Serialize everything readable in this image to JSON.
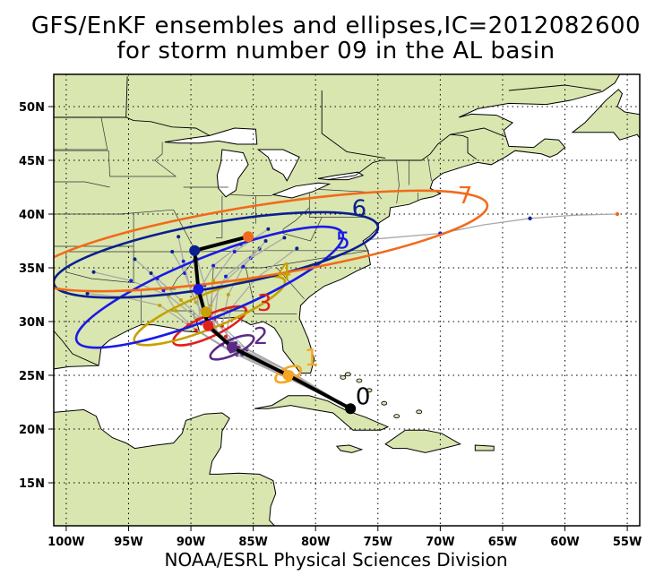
{
  "title": {
    "line1": "GFS/EnKF ensembles and ellipses,IC=2012082600",
    "line2": "for storm number 09 in the AL basin"
  },
  "credit": "NOAA/ESRL Physical Sciences Division",
  "map": {
    "lon_range": [
      -101,
      -54
    ],
    "lat_range": [
      11,
      53
    ],
    "land_color": "#d9e6b0",
    "ocean_color": "#ffffff",
    "grid": "dotted",
    "lon_ticks": [
      "100W",
      "95W",
      "90W",
      "85W",
      "80W",
      "75W",
      "70W",
      "65W",
      "60W",
      "55W"
    ],
    "lat_ticks": [
      "15N",
      "20N",
      "25N",
      "30N",
      "35N",
      "40N",
      "45N",
      "50N"
    ]
  },
  "chart_data": {
    "type": "map-track",
    "mean_track": [
      [
        -77.2,
        21.9
      ],
      [
        -82.2,
        25.0
      ],
      [
        -86.7,
        27.6
      ],
      [
        -88.6,
        29.6
      ],
      [
        -89.4,
        33.0
      ],
      [
        -89.7,
        36.6
      ],
      [
        -85.4,
        37.9
      ]
    ],
    "forecast_days": [
      {
        "label": "0",
        "lon": -77.2,
        "lat": 21.9,
        "color": "#000000"
      },
      {
        "label": "1",
        "lon": -82.2,
        "lat": 25.0,
        "color": "#f5a623"
      },
      {
        "label": "2",
        "lon": -86.7,
        "lat": 27.6,
        "color": "#5b2a86"
      },
      {
        "label": "3",
        "lon": -88.6,
        "lat": 29.6,
        "color": "#e0201b"
      },
      {
        "label": "4",
        "lon": -88.8,
        "lat": 30.9,
        "color": "#c8a000"
      },
      {
        "label": "5",
        "lon": -89.4,
        "lat": 33.0,
        "color": "#1a1ae6"
      },
      {
        "label": "6",
        "lon": -89.7,
        "lat": 36.6,
        "color": "#0a1f8f"
      },
      {
        "label": "7",
        "lon": -85.4,
        "lat": 37.9,
        "color": "#f26a1b"
      }
    ],
    "ellipses": [
      {
        "day": "1",
        "lon": -82.2,
        "lat": 25.1,
        "rx_deg": 1.1,
        "ry_deg": 0.6,
        "rot": -25,
        "color": "#f5a623"
      },
      {
        "day": "2",
        "lon": -86.7,
        "lat": 27.6,
        "rx_deg": 1.9,
        "ry_deg": 0.7,
        "rot": -25,
        "color": "#5b2a86"
      },
      {
        "day": "3",
        "lon": -88.5,
        "lat": 29.6,
        "rx_deg": 3.2,
        "ry_deg": 1.0,
        "rot": -25,
        "color": "#e0201b"
      },
      {
        "day": "4",
        "lon": -88.5,
        "lat": 31.0,
        "rx_deg": 6.5,
        "ry_deg": 1.6,
        "rot": -22,
        "color": "#c8a000"
      },
      {
        "day": "5",
        "lon": -88.5,
        "lat": 33.2,
        "rx_deg": 11.5,
        "ry_deg": 2.8,
        "rot": -22,
        "color": "#1a1ae6"
      },
      {
        "day": "6",
        "lon": -88.0,
        "lat": 36.2,
        "rx_deg": 13.2,
        "ry_deg": 3.0,
        "rot": -10,
        "color": "#0a1f8f"
      },
      {
        "day": "7",
        "lon": -84.5,
        "lat": 37.5,
        "rx_deg": 18.5,
        "ry_deg": 3.3,
        "rot": -9,
        "color": "#f26a1b"
      }
    ],
    "day_labels": [
      {
        "text": "0",
        "lon": -76.2,
        "lat": 22.3,
        "color": "#000000"
      },
      {
        "text": "1",
        "lon": -80.3,
        "lat": 25.9,
        "color": "#f5a623"
      },
      {
        "text": "2",
        "lon": -84.4,
        "lat": 27.9,
        "color": "#5b2a86"
      },
      {
        "text": "3",
        "lon": -84.1,
        "lat": 31.0,
        "color": "#e0201b"
      },
      {
        "text": "4",
        "lon": -82.5,
        "lat": 33.9,
        "color": "#c8a000"
      },
      {
        "text": "5",
        "lon": -77.8,
        "lat": 36.8,
        "color": "#1a1ae6"
      },
      {
        "text": "6",
        "lon": -76.5,
        "lat": 39.8,
        "color": "#0a1f8f"
      },
      {
        "text": "7",
        "lon": -68.0,
        "lat": 41.0,
        "color": "#f26a1b"
      }
    ],
    "ensemble_members": [
      [
        [
          -77.2,
          21.9
        ],
        [
          -81.5,
          24.8
        ],
        [
          -85.8,
          27.2
        ],
        [
          -88.2,
          29.3
        ],
        [
          -89.6,
          31.8
        ],
        [
          -90.5,
          34.5
        ],
        [
          -91.5,
          36.5
        ]
      ],
      [
        [
          -77.2,
          21.9
        ],
        [
          -81.8,
          24.9
        ],
        [
          -86.1,
          27.5
        ],
        [
          -88.8,
          29.8
        ],
        [
          -90.8,
          32.0
        ],
        [
          -92.7,
          34.0
        ],
        [
          -94.5,
          35.8
        ]
      ],
      [
        [
          -77.2,
          21.9
        ],
        [
          -82.4,
          25.2
        ],
        [
          -86.9,
          27.9
        ],
        [
          -89.4,
          30.2
        ],
        [
          -91.8,
          32.4
        ],
        [
          -94.8,
          33.8
        ],
        [
          -97.8,
          34.6
        ]
      ],
      [
        [
          -77.2,
          21.9
        ],
        [
          -82.0,
          24.6
        ],
        [
          -86.3,
          26.9
        ],
        [
          -88.0,
          29.0
        ],
        [
          -88.4,
          31.5
        ],
        [
          -87.2,
          34.2
        ],
        [
          -84.5,
          36.8
        ]
      ],
      [
        [
          -77.2,
          21.9
        ],
        [
          -81.2,
          24.5
        ],
        [
          -85.2,
          26.6
        ],
        [
          -87.2,
          28.6
        ],
        [
          -86.8,
          31.2
        ],
        [
          -84.8,
          34.0
        ],
        [
          -81.5,
          36.8
        ]
      ],
      [
        [
          -77.2,
          21.9
        ],
        [
          -82.5,
          25.3
        ],
        [
          -87.0,
          27.9
        ],
        [
          -89.2,
          29.8
        ],
        [
          -89.5,
          32.5
        ],
        [
          -88.2,
          35.2
        ],
        [
          -86.0,
          37.2
        ]
      ],
      [
        [
          -77.2,
          21.9
        ],
        [
          -82.8,
          25.1
        ],
        [
          -87.5,
          27.8
        ],
        [
          -90.2,
          29.7
        ],
        [
          -92.5,
          31.5
        ],
        [
          -95.5,
          32.3
        ],
        [
          -98.3,
          32.6
        ]
      ],
      [
        [
          -77.2,
          21.9
        ],
        [
          -81.9,
          25.2
        ],
        [
          -86.2,
          27.6
        ],
        [
          -88.1,
          30.2
        ],
        [
          -87.8,
          33.2
        ],
        [
          -85.2,
          35.9
        ],
        [
          -82.5,
          37.8
        ]
      ],
      [
        [
          -77.2,
          21.9
        ],
        [
          -81.6,
          24.7
        ],
        [
          -85.9,
          26.9
        ],
        [
          -87.8,
          28.8
        ],
        [
          -88.5,
          31.0
        ],
        [
          -88.9,
          33.4
        ],
        [
          -89.5,
          35.8
        ]
      ],
      [
        [
          -77.2,
          21.9
        ],
        [
          -82.3,
          24.8
        ],
        [
          -86.8,
          27.2
        ],
        [
          -89.6,
          29.2
        ],
        [
          -91.2,
          31.0
        ],
        [
          -92.2,
          32.9
        ],
        [
          -93.2,
          34.5
        ]
      ],
      [
        [
          -77.2,
          21.9
        ],
        [
          -81.4,
          24.9
        ],
        [
          -85.5,
          27.4
        ],
        [
          -87.5,
          29.6
        ],
        [
          -87.0,
          32.5
        ],
        [
          -85.8,
          35.1
        ],
        [
          -84.0,
          37.5
        ]
      ],
      [
        [
          -77.2,
          21.9
        ],
        [
          -82.1,
          25.0
        ],
        [
          -86.6,
          27.7
        ],
        [
          -88.8,
          30.0
        ],
        [
          -90.0,
          32.8
        ],
        [
          -90.6,
          35.6
        ],
        [
          -91.0,
          37.9
        ]
      ],
      [
        [
          -77.2,
          21.9
        ],
        [
          -82.0,
          25.3
        ],
        [
          -86.4,
          28.0
        ],
        [
          -88.5,
          30.5
        ],
        [
          -88.2,
          33.8
        ],
        [
          -86.5,
          36.5
        ],
        [
          -83.8,
          38.6
        ]
      ]
    ],
    "nhc_track": [
      [
        -76.0,
        37.6
      ],
      [
        -73.0,
        37.9
      ],
      [
        -70.0,
        38.2
      ],
      [
        -66.5,
        39.0
      ],
      [
        -62.8,
        39.6
      ],
      [
        -59.2,
        39.9
      ],
      [
        -55.8,
        40.0
      ]
    ],
    "nhc_track_colored_points": [
      {
        "lon": -70.0,
        "lat": 38.2,
        "color": "#1a1ae6"
      },
      {
        "lon": -62.8,
        "lat": 39.6,
        "color": "#0a1f8f"
      },
      {
        "lon": -55.8,
        "lat": 40.0,
        "color": "#f26a1b"
      }
    ]
  }
}
